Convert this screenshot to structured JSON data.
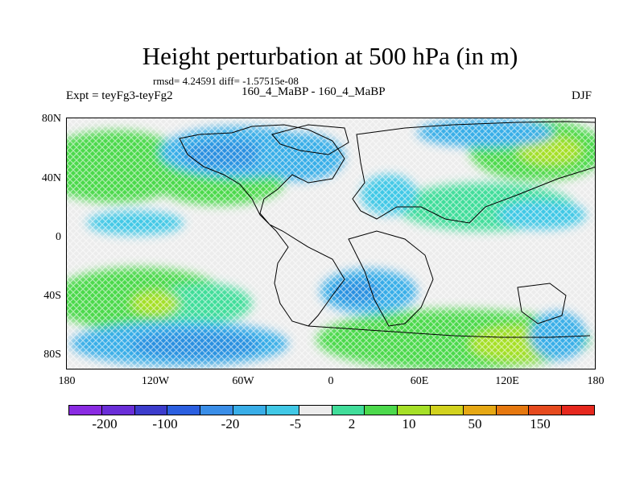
{
  "title": "Height perturbation at 500 hPa (in m)",
  "stats": "rmsd= 4.24591 diff= -1.57515e-08",
  "expt": "Expt = teyFg3-teyFg2",
  "period": "160_4_MaBP - 160_4_MaBP",
  "season": "DJF",
  "y_ticks": [
    "80N",
    "40N",
    "0",
    "40S",
    "80S"
  ],
  "x_ticks": [
    "180",
    "120W",
    "60W",
    "0",
    "60E",
    "120E",
    "180"
  ],
  "colorbar": {
    "colors": [
      "#8a2be2",
      "#6a2ed8",
      "#3c3ccc",
      "#2b5fe0",
      "#3a8ee8",
      "#39aee8",
      "#41c8e6",
      "#ececec",
      "#41dd9a",
      "#4cd94c",
      "#a6e028",
      "#d2d21e",
      "#e6a814",
      "#e6780f",
      "#e64a1e",
      "#e6281e"
    ],
    "labels": [
      "-200",
      "-100",
      "-20",
      "-5",
      "2",
      "10",
      "50",
      "150"
    ]
  }
}
